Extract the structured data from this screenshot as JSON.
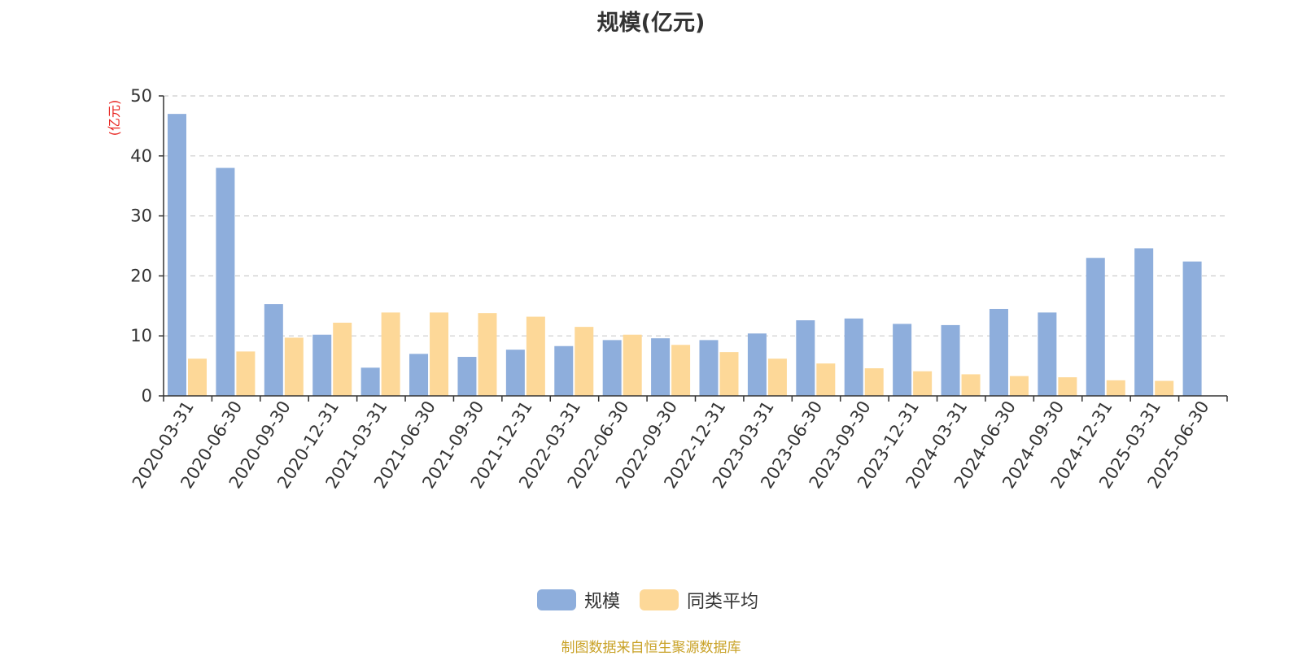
{
  "title": "规模(亿元)",
  "source_note": "制图数据来自恒生聚源数据库",
  "chart_data": {
    "type": "bar",
    "title": "规模(亿元)",
    "ylabel": "(亿元)",
    "ylim": [
      0,
      50
    ],
    "yticks": [
      0,
      10,
      20,
      30,
      40,
      50
    ],
    "grid": true,
    "legend_position": "bottom",
    "categories": [
      "2020-03-31",
      "2020-06-30",
      "2020-09-30",
      "2020-12-31",
      "2021-03-31",
      "2021-06-30",
      "2021-09-30",
      "2021-12-31",
      "2022-03-31",
      "2022-06-30",
      "2022-09-30",
      "2022-12-31",
      "2023-03-31",
      "2023-06-30",
      "2023-09-30",
      "2023-12-31",
      "2024-03-31",
      "2024-06-30",
      "2024-09-30",
      "2024-12-31",
      "2025-03-31",
      "2025-06-30"
    ],
    "series": [
      {
        "name": "规模",
        "color": "#8eaedc",
        "values": [
          47.0,
          38.0,
          15.3,
          10.2,
          4.7,
          7.0,
          6.5,
          7.7,
          8.3,
          9.3,
          9.6,
          9.3,
          10.4,
          12.6,
          12.9,
          12.0,
          11.8,
          14.5,
          13.9,
          23.0,
          24.6,
          22.4
        ]
      },
      {
        "name": "同类平均",
        "color": "#fdd898",
        "values": [
          6.2,
          7.4,
          9.7,
          12.2,
          13.9,
          13.9,
          13.8,
          13.2,
          11.5,
          10.2,
          8.5,
          7.3,
          6.2,
          5.4,
          4.6,
          4.1,
          3.6,
          3.3,
          3.1,
          2.6,
          2.5,
          null
        ]
      }
    ]
  }
}
